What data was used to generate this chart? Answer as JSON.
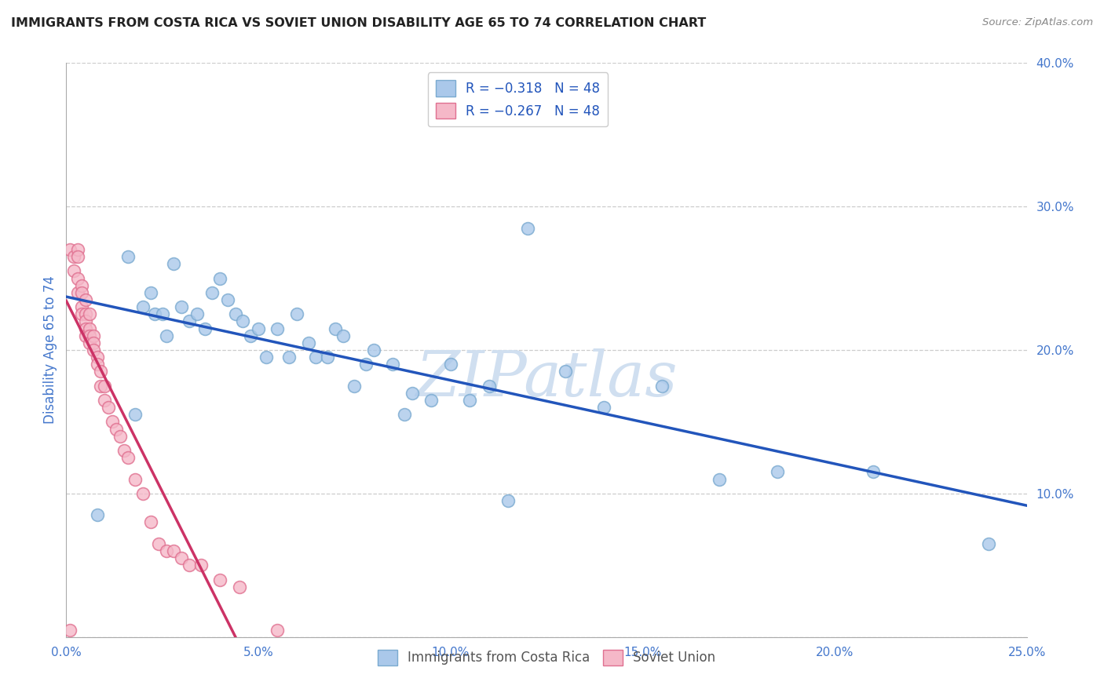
{
  "title": "IMMIGRANTS FROM COSTA RICA VS SOVIET UNION DISABILITY AGE 65 TO 74 CORRELATION CHART",
  "source": "Source: ZipAtlas.com",
  "ylabel_label": "Disability Age 65 to 74",
  "xlim": [
    0.0,
    0.25
  ],
  "ylim": [
    0.0,
    0.4
  ],
  "xticks": [
    0.0,
    0.05,
    0.1,
    0.15,
    0.2,
    0.25
  ],
  "yticks": [
    0.0,
    0.1,
    0.2,
    0.3,
    0.4
  ],
  "xticklabels": [
    "0.0%",
    "5.0%",
    "10.0%",
    "15.0%",
    "20.0%",
    "25.0%"
  ],
  "yticklabels": [
    "",
    "10.0%",
    "20.0%",
    "30.0%",
    "40.0%"
  ],
  "costa_rica_x": [
    0.008,
    0.016,
    0.018,
    0.02,
    0.022,
    0.023,
    0.025,
    0.026,
    0.028,
    0.03,
    0.032,
    0.034,
    0.036,
    0.038,
    0.04,
    0.042,
    0.044,
    0.046,
    0.048,
    0.05,
    0.052,
    0.055,
    0.058,
    0.06,
    0.063,
    0.065,
    0.068,
    0.07,
    0.072,
    0.075,
    0.078,
    0.08,
    0.085,
    0.088,
    0.09,
    0.095,
    0.1,
    0.105,
    0.11,
    0.115,
    0.12,
    0.13,
    0.14,
    0.155,
    0.17,
    0.185,
    0.21,
    0.24
  ],
  "costa_rica_y": [
    0.085,
    0.265,
    0.155,
    0.23,
    0.24,
    0.225,
    0.225,
    0.21,
    0.26,
    0.23,
    0.22,
    0.225,
    0.215,
    0.24,
    0.25,
    0.235,
    0.225,
    0.22,
    0.21,
    0.215,
    0.195,
    0.215,
    0.195,
    0.225,
    0.205,
    0.195,
    0.195,
    0.215,
    0.21,
    0.175,
    0.19,
    0.2,
    0.19,
    0.155,
    0.17,
    0.165,
    0.19,
    0.165,
    0.175,
    0.095,
    0.285,
    0.185,
    0.16,
    0.175,
    0.11,
    0.115,
    0.115,
    0.065
  ],
  "soviet_union_x": [
    0.001,
    0.001,
    0.002,
    0.002,
    0.003,
    0.003,
    0.003,
    0.003,
    0.004,
    0.004,
    0.004,
    0.004,
    0.005,
    0.005,
    0.005,
    0.005,
    0.005,
    0.006,
    0.006,
    0.006,
    0.006,
    0.007,
    0.007,
    0.007,
    0.008,
    0.008,
    0.009,
    0.009,
    0.01,
    0.01,
    0.011,
    0.012,
    0.013,
    0.014,
    0.015,
    0.016,
    0.018,
    0.02,
    0.022,
    0.024,
    0.026,
    0.028,
    0.03,
    0.032,
    0.035,
    0.04,
    0.045,
    0.055
  ],
  "soviet_union_y": [
    0.005,
    0.27,
    0.265,
    0.255,
    0.27,
    0.265,
    0.25,
    0.24,
    0.245,
    0.24,
    0.23,
    0.225,
    0.235,
    0.225,
    0.22,
    0.215,
    0.21,
    0.225,
    0.215,
    0.21,
    0.205,
    0.21,
    0.205,
    0.2,
    0.195,
    0.19,
    0.185,
    0.175,
    0.175,
    0.165,
    0.16,
    0.15,
    0.145,
    0.14,
    0.13,
    0.125,
    0.11,
    0.1,
    0.08,
    0.065,
    0.06,
    0.06,
    0.055,
    0.05,
    0.05,
    0.04,
    0.035,
    0.005
  ],
  "blue_line_color": "#2255bb",
  "pink_line_color": "#cc3366",
  "watermark_text": "ZIPatlas",
  "watermark_color": "#d0dff0",
  "background_color": "#ffffff",
  "grid_color": "#cccccc",
  "title_color": "#222222",
  "axis_label_color": "#4477cc",
  "tick_label_color": "#4477cc"
}
